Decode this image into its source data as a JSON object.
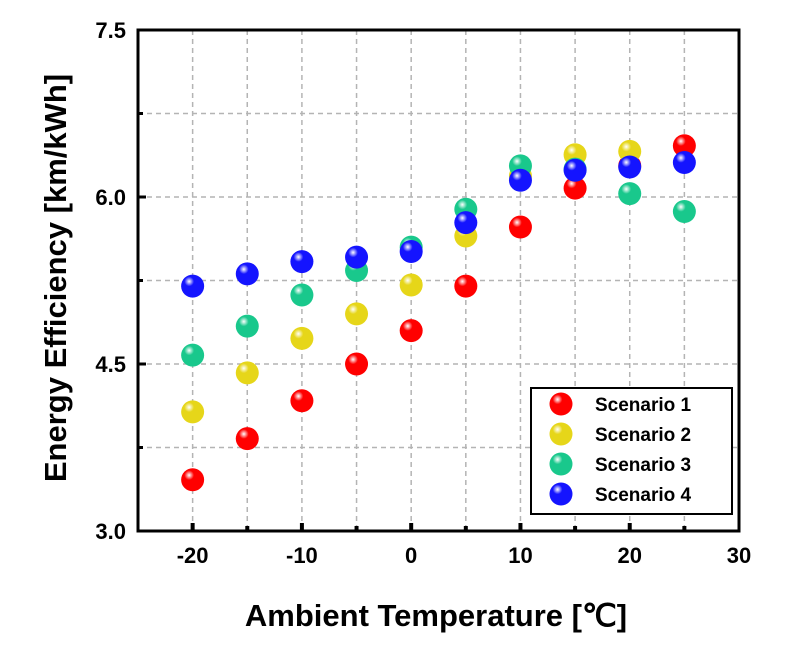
{
  "chart_data": {
    "type": "scatter",
    "xlabel": "Ambient Temperature [℃]",
    "ylabel": "Energy Efficiency [km/kWh]",
    "xlim": [
      -25,
      30
    ],
    "ylim": [
      3.0,
      7.5
    ],
    "x_ticks": [
      "-20",
      "-10",
      "0",
      "10",
      "20",
      "30"
    ],
    "y_ticks": [
      "3.0",
      "4.5",
      "6.0",
      "7.5"
    ],
    "grid": true,
    "legend_position": "bottom-right",
    "x": [
      -20,
      -15,
      -10,
      -5,
      0,
      5,
      10,
      15,
      20,
      25
    ],
    "series": [
      {
        "name": "Scenario 1",
        "color": "#ff0000",
        "values": [
          3.46,
          3.83,
          4.17,
          4.5,
          4.8,
          5.2,
          5.73,
          6.08,
          6.28,
          6.46
        ]
      },
      {
        "name": "Scenario 2",
        "color": "#e6d619",
        "values": [
          4.07,
          4.42,
          4.73,
          4.95,
          5.21,
          5.65,
          6.19,
          6.38,
          6.41,
          null
        ]
      },
      {
        "name": "Scenario 3",
        "color": "#19c88c",
        "values": [
          4.58,
          4.84,
          5.12,
          5.34,
          5.55,
          5.89,
          6.28,
          6.25,
          6.03,
          5.87
        ]
      },
      {
        "name": "Scenario 4",
        "color": "#1414ff",
        "values": [
          5.2,
          5.31,
          5.42,
          5.46,
          5.51,
          5.77,
          6.15,
          6.24,
          6.27,
          6.31
        ]
      }
    ]
  }
}
